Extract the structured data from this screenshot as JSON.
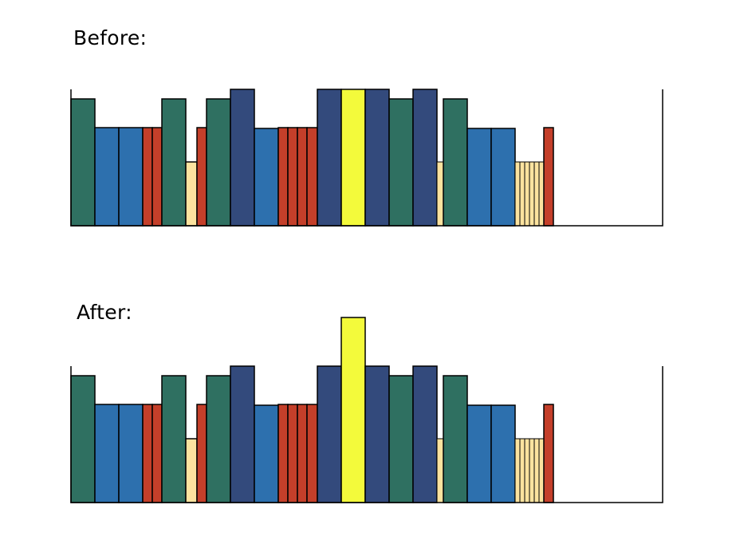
{
  "labels": {
    "before": "Before:",
    "after": "After:"
  },
  "colors": {
    "green": "#2f7061",
    "blue": "#2d70ae",
    "red": "#c43f2a",
    "cream": "#fce39f",
    "navy": "#334a7c",
    "yellow": "#f3fa3b"
  },
  "shelves": [
    {
      "name": "before",
      "books": [
        {
          "w": 30,
          "h": 159,
          "c": "green"
        },
        {
          "w": 30,
          "h": 123,
          "c": "blue"
        },
        {
          "w": 30,
          "h": 123,
          "c": "blue"
        },
        {
          "w": 12,
          "h": 123,
          "c": "red"
        },
        {
          "w": 12,
          "h": 123,
          "c": "red"
        },
        {
          "w": 30,
          "h": 159,
          "c": "green"
        },
        {
          "w": 14,
          "h": 80,
          "c": "cream"
        },
        {
          "w": 12,
          "h": 123,
          "c": "red"
        },
        {
          "w": 30,
          "h": 159,
          "c": "green"
        },
        {
          "w": 30,
          "h": 171,
          "c": "navy"
        },
        {
          "w": 30,
          "h": 122,
          "c": "blue"
        },
        {
          "w": 12,
          "h": 123,
          "c": "red"
        },
        {
          "w": 12,
          "h": 123,
          "c": "red"
        },
        {
          "w": 12,
          "h": 123,
          "c": "red"
        },
        {
          "w": 13,
          "h": 123,
          "c": "red"
        },
        {
          "w": 30,
          "h": 171,
          "c": "navy"
        },
        {
          "w": 30,
          "h": 171,
          "c": "yellow"
        },
        {
          "w": 30,
          "h": 171,
          "c": "navy"
        },
        {
          "w": 30,
          "h": 159,
          "c": "green"
        },
        {
          "w": 30,
          "h": 171,
          "c": "navy"
        },
        {
          "w": 8,
          "h": 80,
          "c": "cream"
        },
        {
          "w": 30,
          "h": 159,
          "c": "green"
        },
        {
          "w": 30,
          "h": 122,
          "c": "blue"
        },
        {
          "w": 30,
          "h": 122,
          "c": "blue"
        },
        {
          "w": 6,
          "h": 80,
          "c": "cream"
        },
        {
          "w": 6,
          "h": 80,
          "c": "cream"
        },
        {
          "w": 6,
          "h": 80,
          "c": "cream"
        },
        {
          "w": 6,
          "h": 80,
          "c": "cream"
        },
        {
          "w": 6,
          "h": 80,
          "c": "cream"
        },
        {
          "w": 6,
          "h": 80,
          "c": "cream"
        },
        {
          "w": 12,
          "h": 123,
          "c": "red"
        }
      ]
    },
    {
      "name": "after",
      "books": [
        {
          "w": 30,
          "h": 159,
          "c": "green"
        },
        {
          "w": 30,
          "h": 123,
          "c": "blue"
        },
        {
          "w": 30,
          "h": 123,
          "c": "blue"
        },
        {
          "w": 12,
          "h": 123,
          "c": "red"
        },
        {
          "w": 12,
          "h": 123,
          "c": "red"
        },
        {
          "w": 30,
          "h": 159,
          "c": "green"
        },
        {
          "w": 14,
          "h": 80,
          "c": "cream"
        },
        {
          "w": 12,
          "h": 123,
          "c": "red"
        },
        {
          "w": 30,
          "h": 159,
          "c": "green"
        },
        {
          "w": 30,
          "h": 171,
          "c": "navy"
        },
        {
          "w": 30,
          "h": 122,
          "c": "blue"
        },
        {
          "w": 12,
          "h": 123,
          "c": "red"
        },
        {
          "w": 12,
          "h": 123,
          "c": "red"
        },
        {
          "w": 12,
          "h": 123,
          "c": "red"
        },
        {
          "w": 13,
          "h": 123,
          "c": "red"
        },
        {
          "w": 30,
          "h": 171,
          "c": "navy"
        },
        {
          "w": 30,
          "h": 232,
          "c": "yellow"
        },
        {
          "w": 30,
          "h": 171,
          "c": "navy"
        },
        {
          "w": 30,
          "h": 159,
          "c": "green"
        },
        {
          "w": 30,
          "h": 171,
          "c": "navy"
        },
        {
          "w": 8,
          "h": 80,
          "c": "cream"
        },
        {
          "w": 30,
          "h": 159,
          "c": "green"
        },
        {
          "w": 30,
          "h": 122,
          "c": "blue"
        },
        {
          "w": 30,
          "h": 122,
          "c": "blue"
        },
        {
          "w": 6,
          "h": 80,
          "c": "cream"
        },
        {
          "w": 6,
          "h": 80,
          "c": "cream"
        },
        {
          "w": 6,
          "h": 80,
          "c": "cream"
        },
        {
          "w": 6,
          "h": 80,
          "c": "cream"
        },
        {
          "w": 6,
          "h": 80,
          "c": "cream"
        },
        {
          "w": 6,
          "h": 80,
          "c": "cream"
        },
        {
          "w": 12,
          "h": 123,
          "c": "red"
        }
      ]
    }
  ]
}
